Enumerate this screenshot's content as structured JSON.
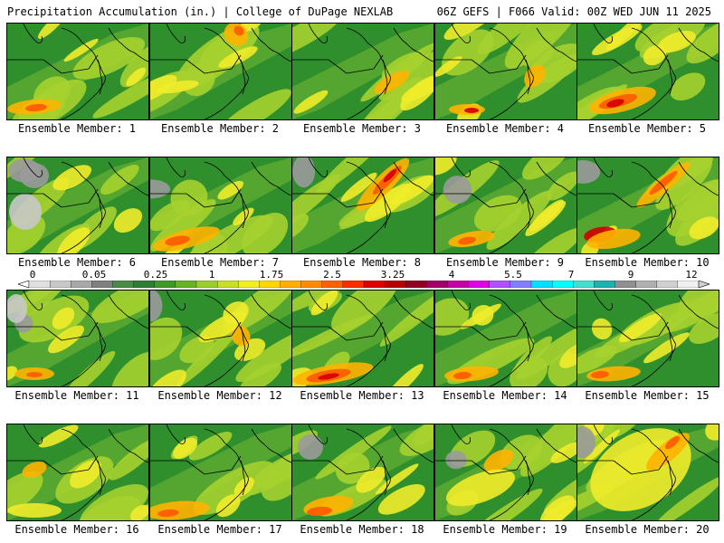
{
  "header": {
    "left": "Precipitation Accumulation (in.) | College of DuPage NEXLAB",
    "right": "06Z GEFS | F066 Valid: 00Z WED JUN 11 2025"
  },
  "members": [
    {
      "label": "Ensemble Member: 1"
    },
    {
      "label": "Ensemble Member: 2"
    },
    {
      "label": "Ensemble Member: 3"
    },
    {
      "label": "Ensemble Member: 4"
    },
    {
      "label": "Ensemble Member: 5"
    },
    {
      "label": "Ensemble Member: 6"
    },
    {
      "label": "Ensemble Member: 7"
    },
    {
      "label": "Ensemble Member: 8"
    },
    {
      "label": "Ensemble Member: 9"
    },
    {
      "label": "Ensemble Member: 10"
    },
    {
      "label": "Ensemble Member: 11"
    },
    {
      "label": "Ensemble Member: 12"
    },
    {
      "label": "Ensemble Member: 13"
    },
    {
      "label": "Ensemble Member: 14"
    },
    {
      "label": "Ensemble Member: 15"
    },
    {
      "label": "Ensemble Member: 16"
    },
    {
      "label": "Ensemble Member: 17"
    },
    {
      "label": "Ensemble Member: 18"
    },
    {
      "label": "Ensemble Member: 19"
    },
    {
      "label": "Ensemble Member: 20"
    }
  ],
  "colorscale": {
    "ticks": [
      "0",
      "0.05",
      "0.25",
      "1",
      "1.75",
      "2.5",
      "3.25",
      "4",
      "5.5",
      "7",
      "9",
      "12"
    ],
    "colors": [
      "#e0e0e0",
      "#c8c8c8",
      "#a8a8a8",
      "#7f7f7f",
      "#4a8a48",
      "#2e7d32",
      "#3f9a2a",
      "#66b32a",
      "#9acd32",
      "#c8e020",
      "#f0f020",
      "#ffd700",
      "#ffb000",
      "#ff8c00",
      "#ff6000",
      "#ff2a00",
      "#e00000",
      "#b80000",
      "#900020",
      "#a0006a",
      "#c800a0",
      "#e000e0",
      "#b050ff",
      "#8080ff",
      "#00e0ff",
      "#00ffff",
      "#40e0d0",
      "#20b0b0",
      "#909090",
      "#b0b0b0",
      "#d0d0d0",
      "#f0f0f0"
    ]
  },
  "palette": {
    "green_dark": "#1f6f23",
    "green": "#2f8f2c",
    "green_light": "#5aa832",
    "yellow_green": "#a6d12f",
    "yellow": "#f0ec2a",
    "orange": "#ffb300",
    "red_orange": "#ff5a00",
    "red": "#d40000",
    "gray": "#9a9a9a",
    "gray_light": "#c8c8c8"
  }
}
